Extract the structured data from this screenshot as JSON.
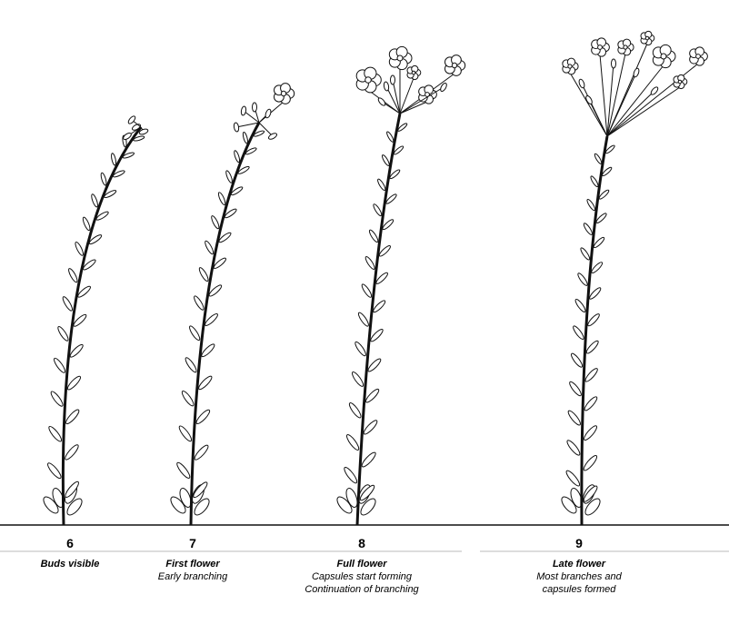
{
  "stages": [
    {
      "number": 6,
      "title": "Buds visible",
      "details": []
    },
    {
      "number": 7,
      "title": "First flower",
      "details": [
        "Early branching"
      ]
    },
    {
      "number": 8,
      "title": "Full flower",
      "details": [
        "Capsules start forming",
        "Continuation of branching"
      ]
    },
    {
      "number": 9,
      "title": "Late flower",
      "details": [
        "Most branches and",
        "capsules formed"
      ]
    }
  ]
}
